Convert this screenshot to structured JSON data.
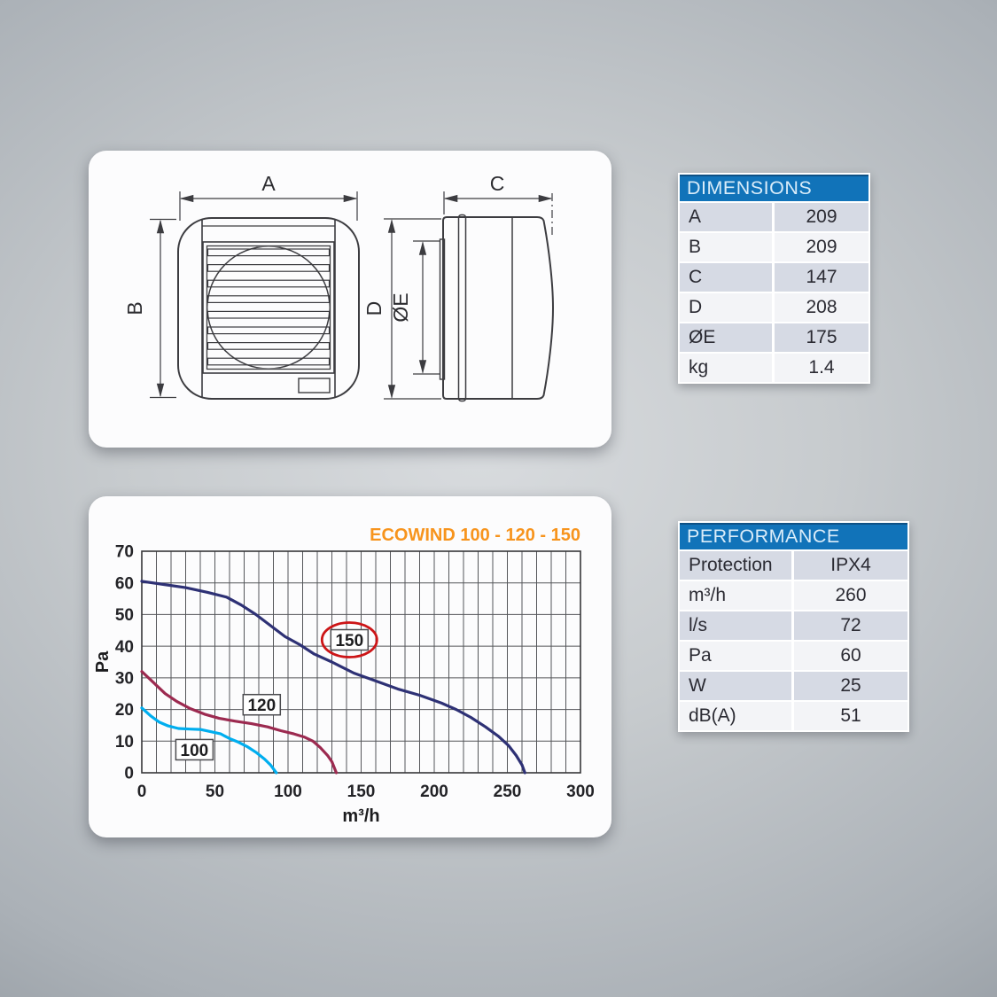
{
  "drawing": {
    "labels": {
      "a": "A",
      "b": "B",
      "c": "C",
      "d": "D",
      "oe": "ØE"
    }
  },
  "dimensions_table": {
    "title": "DIMENSIONS",
    "rows": [
      {
        "label": "A",
        "value": "209"
      },
      {
        "label": "B",
        "value": "209"
      },
      {
        "label": "C",
        "value": "147"
      },
      {
        "label": "D",
        "value": "208"
      },
      {
        "label": "ØE",
        "value": "175"
      },
      {
        "label": "kg",
        "value": "1.4"
      }
    ]
  },
  "performance_table": {
    "title": "PERFORMANCE",
    "rows": [
      {
        "label": "Protection",
        "value": "IPX4"
      },
      {
        "label": "m³/h",
        "value": "260"
      },
      {
        "label": "l/s",
        "value": "72"
      },
      {
        "label": "Pa",
        "value": "60"
      },
      {
        "label": "W",
        "value": "25"
      },
      {
        "label": "dB(A)",
        "value": "51"
      }
    ]
  },
  "colors": {
    "table_header_bg": "#1173b9",
    "table_header_text": "#d9ecf9",
    "row_shaded": "#d6dae4",
    "row_plain": "#f3f4f7",
    "chart_title": "#f7941d",
    "annotation_red": "#cc1517",
    "curve_150": "#2e3175",
    "curve_120": "#9c2a50",
    "curve_100": "#00aeef"
  },
  "chart_data": {
    "type": "line",
    "title": "ECOWIND 100 - 120 - 150",
    "title_color": "#f7941d",
    "xlabel": "m³/h",
    "ylabel": "Pa",
    "xlim": [
      0,
      300
    ],
    "ylim": [
      0,
      70
    ],
    "x_ticks": [
      0,
      50,
      100,
      150,
      200,
      250,
      300
    ],
    "y_ticks": [
      0,
      10,
      20,
      30,
      40,
      50,
      60,
      70
    ],
    "grid": {
      "on": true,
      "x_step": 10,
      "y_step": 10,
      "color": "#55565a"
    },
    "legend_position": "inline-curve-labels",
    "annotation_color": "#cc1517",
    "series": [
      {
        "name": "150",
        "color": "#2e3175",
        "label_pos": [
          142,
          42
        ],
        "label_circled": true,
        "points": [
          [
            0,
            60.5
          ],
          [
            15,
            59.5
          ],
          [
            30,
            58.5
          ],
          [
            45,
            57
          ],
          [
            58,
            55.5
          ],
          [
            68,
            53
          ],
          [
            78,
            50
          ],
          [
            88,
            46.5
          ],
          [
            98,
            43
          ],
          [
            108,
            40.5
          ],
          [
            118,
            37.5
          ],
          [
            130,
            35
          ],
          [
            145,
            31.5
          ],
          [
            160,
            29
          ],
          [
            175,
            26.5
          ],
          [
            190,
            24.5
          ],
          [
            205,
            22
          ],
          [
            215,
            20
          ],
          [
            225,
            17.5
          ],
          [
            235,
            14.5
          ],
          [
            244,
            11.5
          ],
          [
            251,
            8.5
          ],
          [
            256,
            5.5
          ],
          [
            260,
            2.5
          ],
          [
            262,
            0
          ]
        ]
      },
      {
        "name": "120",
        "color": "#9c2a50",
        "label_pos": [
          82,
          21.5
        ],
        "label_circled": false,
        "points": [
          [
            0,
            32
          ],
          [
            8,
            28.5
          ],
          [
            16,
            25
          ],
          [
            24,
            22.5
          ],
          [
            33,
            20.3
          ],
          [
            43,
            18.5
          ],
          [
            53,
            17.2
          ],
          [
            64,
            16.3
          ],
          [
            75,
            15.5
          ],
          [
            86,
            14.5
          ],
          [
            95,
            13.3
          ],
          [
            104,
            12.3
          ],
          [
            111,
            11.3
          ],
          [
            117,
            10
          ],
          [
            122,
            8
          ],
          [
            127,
            5.5
          ],
          [
            130,
            3.5
          ],
          [
            133,
            0
          ]
        ]
      },
      {
        "name": "100",
        "color": "#00aeef",
        "label_pos": [
          36,
          7.3
        ],
        "label_circled": false,
        "points": [
          [
            0,
            20.5
          ],
          [
            6,
            18
          ],
          [
            12,
            16
          ],
          [
            18,
            14.8
          ],
          [
            25,
            14
          ],
          [
            33,
            13.8
          ],
          [
            40,
            13.7
          ],
          [
            47,
            13
          ],
          [
            54,
            12.3
          ],
          [
            60,
            10.8
          ],
          [
            66,
            9.7
          ],
          [
            72,
            8.3
          ],
          [
            78,
            6.5
          ],
          [
            84,
            4.3
          ],
          [
            88,
            2.5
          ],
          [
            92,
            0
          ]
        ]
      }
    ]
  }
}
